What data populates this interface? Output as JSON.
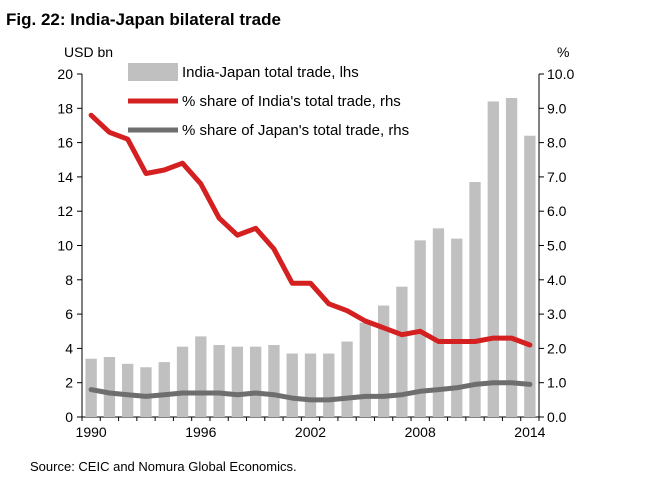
{
  "title": "Fig. 22: India-Japan bilateral trade",
  "source": "Source: CEIC and Nomura Global Economics.",
  "colors": {
    "bars": "#c0c0c0",
    "india_line": "#d42020",
    "japan_line": "#6e6e6e"
  },
  "chart_data": {
    "type": "bar+line",
    "title": "Fig. 22: India-Japan bilateral trade",
    "left_axis": {
      "label": "USD bn",
      "range": [
        0,
        20
      ],
      "ticks": [
        "0",
        "2",
        "4",
        "6",
        "8",
        "10",
        "12",
        "14",
        "16",
        "18",
        "20"
      ]
    },
    "right_axis": {
      "label": "%",
      "range": [
        0,
        10
      ],
      "ticks": [
        "0.0",
        "1.0",
        "2.0",
        "3.0",
        "4.0",
        "5.0",
        "6.0",
        "7.0",
        "8.0",
        "9.0",
        "10.0"
      ]
    },
    "x_ticks": [
      "1990",
      "1996",
      "2002",
      "2008",
      "2014"
    ],
    "categories": [
      1990,
      1991,
      1992,
      1993,
      1994,
      1995,
      1996,
      1997,
      1998,
      1999,
      2000,
      2001,
      2002,
      2003,
      2004,
      2005,
      2006,
      2007,
      2008,
      2009,
      2010,
      2011,
      2012,
      2013,
      2014
    ],
    "series": [
      {
        "name": "India-Japan total trade, lhs",
        "type": "bar",
        "axis": "left",
        "values": [
          3.4,
          3.5,
          3.1,
          2.9,
          3.2,
          4.1,
          4.7,
          4.2,
          4.1,
          4.1,
          4.2,
          3.7,
          3.7,
          3.7,
          4.4,
          5.5,
          6.5,
          7.6,
          10.3,
          11.0,
          10.4,
          13.7,
          18.4,
          18.6,
          16.4
        ]
      },
      {
        "name": "% share of India's total trade, rhs",
        "type": "line",
        "axis": "right",
        "values": [
          8.8,
          8.3,
          8.1,
          7.1,
          7.2,
          7.4,
          6.8,
          5.8,
          5.3,
          5.5,
          4.9,
          3.9,
          3.9,
          3.3,
          3.1,
          2.8,
          2.6,
          2.4,
          2.5,
          2.2,
          2.2,
          2.2,
          2.3,
          2.3,
          2.1
        ]
      },
      {
        "name": "% share of Japan's total trade, rhs",
        "type": "line",
        "axis": "right",
        "values": [
          0.8,
          0.7,
          0.65,
          0.6,
          0.65,
          0.7,
          0.7,
          0.7,
          0.65,
          0.7,
          0.65,
          0.55,
          0.5,
          0.5,
          0.55,
          0.6,
          0.6,
          0.65,
          0.75,
          0.8,
          0.85,
          0.95,
          1.0,
          1.0,
          0.95
        ]
      }
    ],
    "legend": "top-left inside plot"
  }
}
